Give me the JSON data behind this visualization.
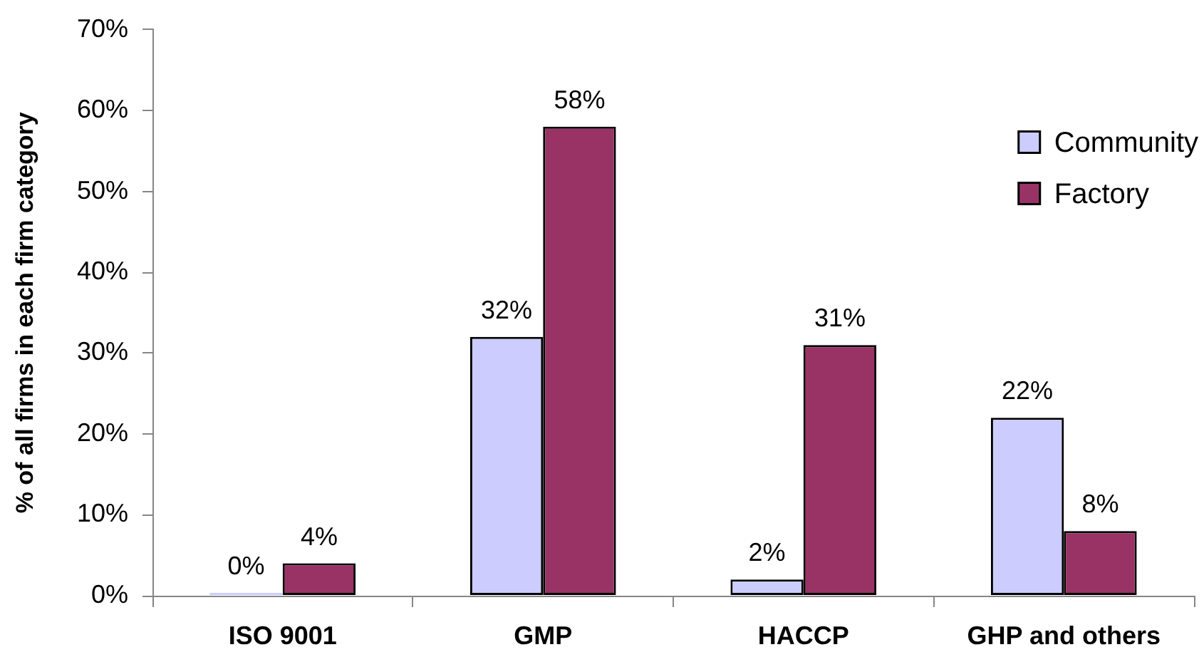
{
  "chart_data": {
    "type": "bar",
    "ylabel": "% of all firms in each firm category",
    "categories": [
      "ISO 9001",
      "GMP",
      "HACCP",
      "GHP and others"
    ],
    "series": [
      {
        "name": "Community",
        "color": "#ccccff",
        "values": [
          0,
          32,
          2,
          22
        ],
        "value_labels": [
          "0%",
          "32%",
          "2%",
          "22%"
        ]
      },
      {
        "name": "Factory",
        "color": "#993366",
        "values": [
          4,
          58,
          31,
          8
        ],
        "value_labels": [
          "4%",
          "58%",
          "31%",
          "8%"
        ]
      }
    ],
    "ylim": [
      0,
      70
    ],
    "yticks": [
      {
        "value": 0,
        "label": "0%"
      },
      {
        "value": 10,
        "label": "10%"
      },
      {
        "value": 20,
        "label": "20%"
      },
      {
        "value": 30,
        "label": "30%"
      },
      {
        "value": 40,
        "label": "40%"
      },
      {
        "value": 50,
        "label": "50%"
      },
      {
        "value": 60,
        "label": "60%"
      },
      {
        "value": 70,
        "label": "70%"
      }
    ],
    "legend": "top right"
  }
}
